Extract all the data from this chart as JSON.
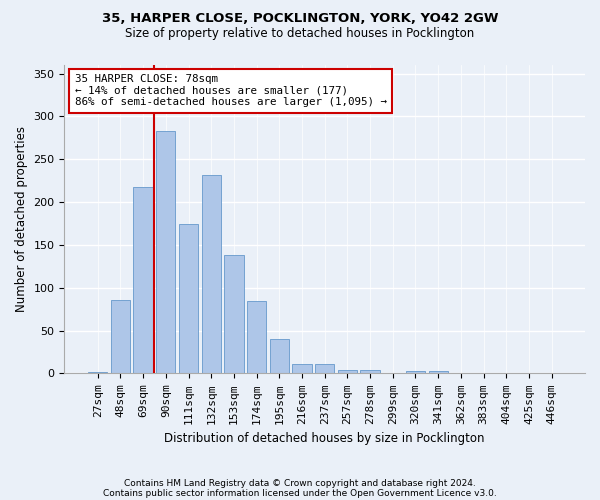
{
  "title1": "35, HARPER CLOSE, POCKLINGTON, YORK, YO42 2GW",
  "title2": "Size of property relative to detached houses in Pocklington",
  "xlabel": "Distribution of detached houses by size in Pocklington",
  "ylabel": "Number of detached properties",
  "categories": [
    "27sqm",
    "48sqm",
    "69sqm",
    "90sqm",
    "111sqm",
    "132sqm",
    "153sqm",
    "174sqm",
    "195sqm",
    "216sqm",
    "237sqm",
    "257sqm",
    "278sqm",
    "299sqm",
    "320sqm",
    "341sqm",
    "362sqm",
    "383sqm",
    "404sqm",
    "425sqm",
    "446sqm"
  ],
  "values": [
    2,
    86,
    218,
    283,
    174,
    232,
    138,
    84,
    40,
    11,
    11,
    4,
    4,
    0,
    3,
    3,
    0,
    1,
    0,
    1,
    1
  ],
  "bar_color": "#aec6e8",
  "bar_edge_color": "#6699cc",
  "vline_color": "#cc0000",
  "vline_pos": 2.5,
  "annotation_text": "35 HARPER CLOSE: 78sqm\n← 14% of detached houses are smaller (177)\n86% of semi-detached houses are larger (1,095) →",
  "annotation_box_color": "#ffffff",
  "annotation_box_edge_color": "#cc0000",
  "ylim": [
    0,
    360
  ],
  "yticks": [
    0,
    50,
    100,
    150,
    200,
    250,
    300,
    350
  ],
  "footer1": "Contains HM Land Registry data © Crown copyright and database right 2024.",
  "footer2": "Contains public sector information licensed under the Open Government Licence v3.0.",
  "bg_color": "#eaf0f8",
  "plot_bg_color": "#eaf0f8",
  "title1_fontsize": 9.5,
  "title2_fontsize": 8.5,
  "ylabel_fontsize": 8.5,
  "xlabel_fontsize": 8.5,
  "tick_fontsize": 8,
  "annot_fontsize": 7.8,
  "footer_fontsize": 6.5
}
